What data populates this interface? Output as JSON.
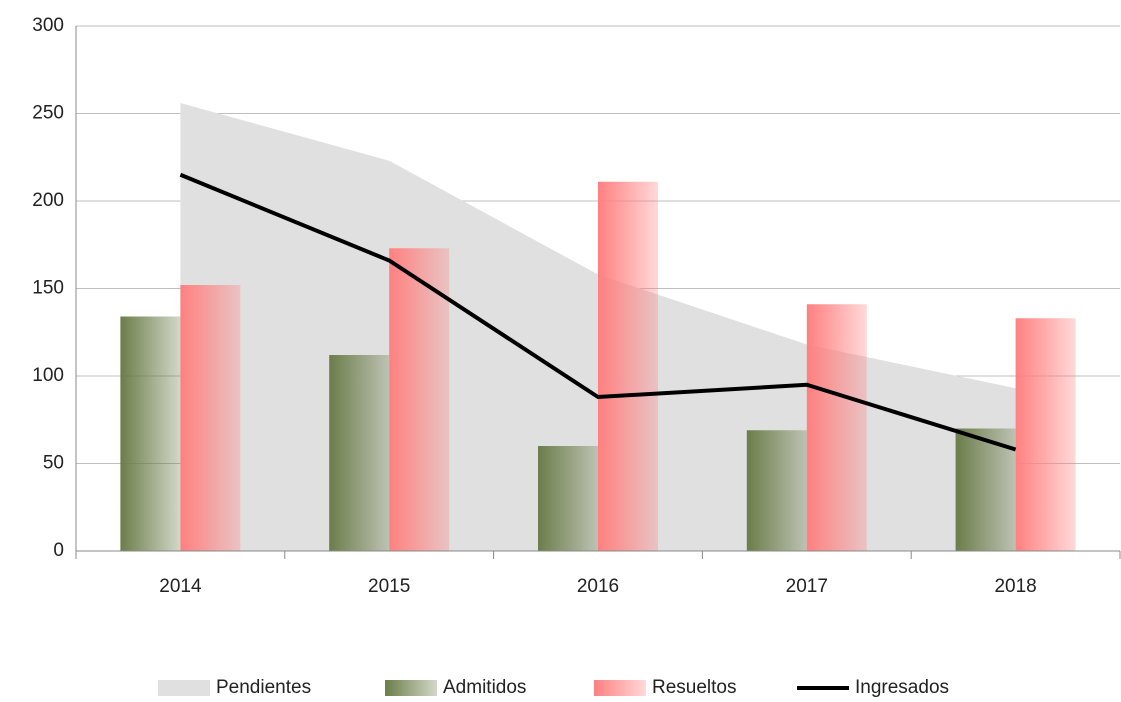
{
  "chart_data": {
    "type": "combo",
    "categories": [
      "2014",
      "2015",
      "2016",
      "2017",
      "2018"
    ],
    "series": [
      {
        "name": "Pendientes",
        "type": "area",
        "color": "#e0e0e0",
        "values": [
          256,
          223,
          158,
          118,
          93
        ]
      },
      {
        "name": "Admitidos",
        "type": "bar",
        "color": "#6b7d4a",
        "values": [
          134,
          112,
          60,
          69,
          70
        ]
      },
      {
        "name": "Resueltos",
        "type": "bar",
        "color": "#ff8080",
        "values": [
          152,
          173,
          211,
          141,
          133
        ]
      },
      {
        "name": "Ingresados",
        "type": "line",
        "color": "#000000",
        "values": [
          215,
          166,
          88,
          95,
          58
        ]
      }
    ],
    "ylim": [
      0,
      300
    ],
    "yticks": [
      0,
      50,
      100,
      150,
      200,
      250,
      300
    ],
    "grid": true,
    "legend": "bottom"
  }
}
